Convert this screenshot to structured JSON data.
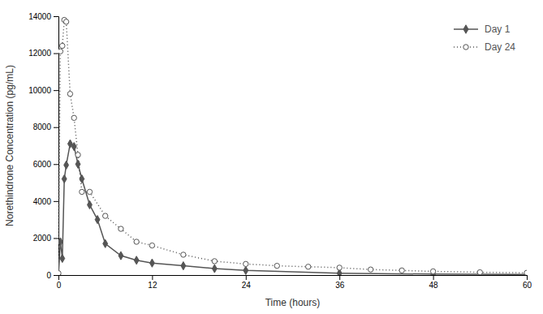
{
  "chart_data": {
    "type": "line",
    "xlabel": "Time (hours)",
    "ylabel": "Norethindrone Concentration (pg/mL)",
    "xlim": [
      0,
      60
    ],
    "ylim": [
      0,
      14000
    ],
    "xticks": [
      0,
      12,
      24,
      36,
      48,
      60
    ],
    "yticks": [
      0,
      2000,
      4000,
      6000,
      8000,
      10000,
      12000,
      14000
    ],
    "grid": false,
    "legend": "upper right",
    "series": [
      {
        "name": "Day 1",
        "color": "#555555",
        "marker": "diamond",
        "line_style": "solid",
        "x": [
          0,
          0.25,
          0.5,
          0.75,
          1.0,
          1.5,
          2.0,
          2.5,
          3.0,
          4.0,
          5.0,
          6.0,
          8.0,
          10.0,
          12.0,
          16.0,
          20.0,
          24.0,
          36.0,
          48.0,
          60.0
        ],
        "values": [
          0,
          1800,
          900,
          5200,
          5950,
          7100,
          6950,
          6000,
          5200,
          3800,
          3000,
          1700,
          1050,
          800,
          650,
          500,
          350,
          250,
          100,
          50,
          30
        ]
      },
      {
        "name": "Day 24",
        "color": "#555555",
        "marker": "open-circle",
        "line_style": "dotted",
        "x": [
          0,
          0.25,
          0.5,
          0.75,
          1.0,
          1.5,
          2.0,
          2.5,
          3.0,
          4.0,
          6.0,
          8.0,
          10.0,
          12.0,
          16.0,
          20.0,
          24.0,
          28.0,
          32.0,
          36.0,
          40.0,
          44.0,
          48.0,
          54.0,
          60.0
        ],
        "values": [
          100,
          12100,
          12400,
          13800,
          13700,
          9800,
          8500,
          6500,
          4500,
          4500,
          3200,
          2500,
          1800,
          1600,
          1100,
          750,
          600,
          500,
          450,
          400,
          300,
          250,
          200,
          150,
          120
        ]
      }
    ]
  }
}
